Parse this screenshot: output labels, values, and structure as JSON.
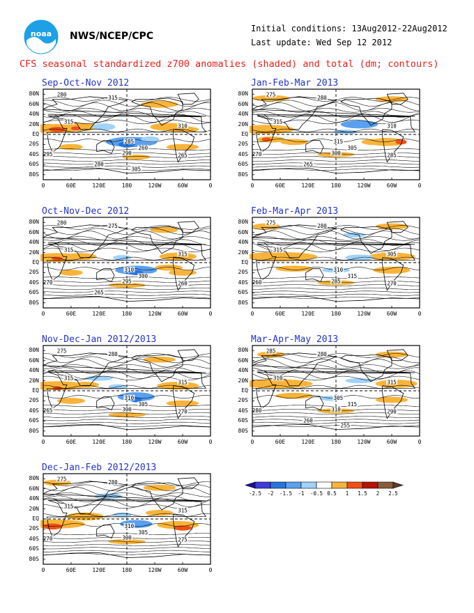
{
  "header": {
    "logo_text": "noaa",
    "org": "NWS/NCEP/CPC",
    "initial_conditions": "Initial conditions: 13Aug2012-22Aug2012",
    "last_update": "Last update: Wed Sep 12 2012",
    "title": "CFS seasonal standardized z700 anomalies (shaded) and total (dm; contours)"
  },
  "axes": {
    "lat_labels": [
      "80N",
      "60N",
      "40N",
      "20N",
      "EQ",
      "20S",
      "40S",
      "60S",
      "80S"
    ],
    "lon_labels": [
      "0",
      "60E",
      "120E",
      "180",
      "120W",
      "60W",
      "0"
    ]
  },
  "panels": [
    {
      "id": "p1",
      "title": "Sep-Oct-Nov 2012",
      "contour_labels": [
        "280",
        "315",
        "315",
        "310",
        "285",
        "260",
        "290",
        "265",
        "295",
        "280",
        "305"
      ]
    },
    {
      "id": "p2",
      "title": "Oct-Nov-Dec 2012",
      "contour_labels": [
        "280",
        "275",
        "315",
        "315",
        "310",
        "300",
        "295",
        "260",
        "270",
        "265"
      ]
    },
    {
      "id": "p3",
      "title": "Nov-Dec-Jan 2012/2013",
      "contour_labels": [
        "275",
        "280",
        "315",
        "315",
        "310",
        "305",
        "300",
        "270",
        "265"
      ]
    },
    {
      "id": "p4",
      "title": "Dec-Jan-Feb 2012/2013",
      "contour_labels": [
        "275",
        "280",
        "315",
        "315",
        "310",
        "305",
        "300",
        "275",
        "270"
      ]
    },
    {
      "id": "p5",
      "title": "Jan-Feb-Mar 2013",
      "contour_labels": [
        "275",
        "280",
        "315",
        "310",
        "315",
        "305",
        "300",
        "285",
        "270",
        "265"
      ]
    },
    {
      "id": "p6",
      "title": "Feb-Mar-Apr 2013",
      "contour_labels": [
        "275",
        "280",
        "315",
        "305",
        "310",
        "315",
        "285",
        "270",
        "260"
      ]
    },
    {
      "id": "p7",
      "title": "Mar-Apr-May 2013",
      "contour_labels": [
        "285",
        "280",
        "310",
        "315",
        "305",
        "315",
        "310",
        "290",
        "280",
        "260",
        "255"
      ]
    }
  ],
  "colorbar": {
    "labels": [
      "-2.5",
      "-2",
      "-1.5",
      "-1",
      "-0.5",
      "0.5",
      "1",
      "1.5",
      "2",
      "2.5"
    ],
    "colors": [
      "#1e0fa0",
      "#3c3cdc",
      "#2874dc",
      "#5aa0f0",
      "#a0d2fa",
      "#ffffff",
      "#f8b43a",
      "#f05014",
      "#b41400",
      "#8c5a3c",
      "#5a3c2d"
    ]
  }
}
